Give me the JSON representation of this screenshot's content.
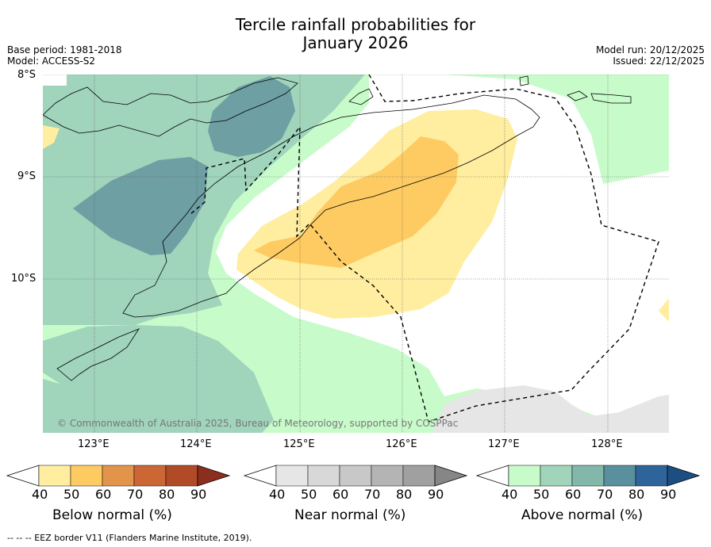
{
  "title_line1": "Tercile rainfall probabilities for",
  "title_line2": "January 2026",
  "meta_left": {
    "base_period": "Base period: 1981-2018",
    "model": "Model: ACCESS-S2"
  },
  "meta_right": {
    "model_run": "Model run: 20/12/2025",
    "issued": "Issued: 22/12/2025"
  },
  "map": {
    "lat_labels": [
      "8°S",
      "9°S",
      "10°S"
    ],
    "lon_labels": [
      "123°E",
      "124°E",
      "125°E",
      "126°E",
      "127°E",
      "128°E"
    ],
    "copyright": "© Commonwealth of Australia 2025, Bureau of Meteorology, supported by COSPPac"
  },
  "colorbars": [
    {
      "title": "Below normal (%)",
      "ticks": [
        "40",
        "50",
        "60",
        "70",
        "80",
        "90"
      ],
      "colors": [
        "#ffffff",
        "#ffeda0",
        "#fecb63",
        "#e1944a",
        "#cb6635",
        "#b04a27",
        "#8c2e1d"
      ]
    },
    {
      "title": "Near normal (%)",
      "ticks": [
        "40",
        "50",
        "60",
        "70",
        "80",
        "90"
      ],
      "colors": [
        "#ffffff",
        "#e6e6e6",
        "#d8d8d8",
        "#c8c8c8",
        "#b4b4b4",
        "#a0a0a0",
        "#868686"
      ]
    },
    {
      "title": "Above normal (%)",
      "ticks": [
        "40",
        "50",
        "60",
        "70",
        "80",
        "90"
      ],
      "colors": [
        "#ffffff",
        "#c8fbca",
        "#a0d4bb",
        "#82b7aa",
        "#5a8f9e",
        "#2e6499",
        "#1c4e82"
      ]
    }
  ],
  "eez_note": "--  --  -- EEZ border V11 (Flanders Marine Institute, 2019)."
}
